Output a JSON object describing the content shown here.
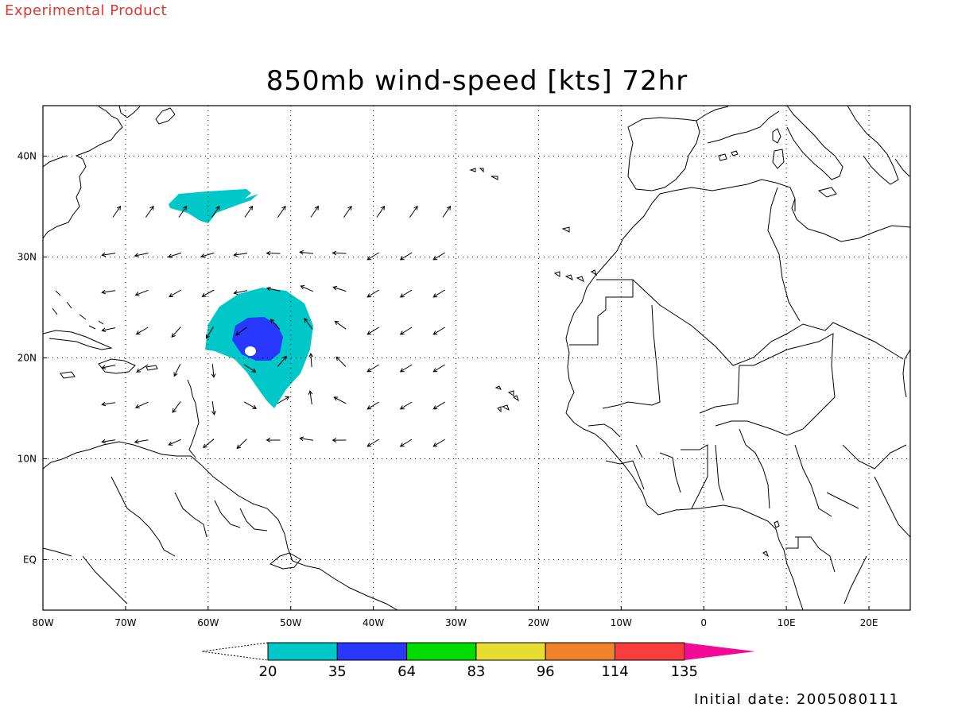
{
  "header": {
    "banner": "Experimental Product"
  },
  "map": {
    "title": "850mb wind-speed [kts] 72hr",
    "lon_range": [
      -80,
      25
    ],
    "lat_range": [
      -5,
      45
    ],
    "lon_ticks": [
      {
        "value": -80,
        "label": "80W"
      },
      {
        "value": -70,
        "label": "70W"
      },
      {
        "value": -60,
        "label": "60W"
      },
      {
        "value": -50,
        "label": "50W"
      },
      {
        "value": -40,
        "label": "40W"
      },
      {
        "value": -30,
        "label": "30W"
      },
      {
        "value": -20,
        "label": "20W"
      },
      {
        "value": -10,
        "label": "10W"
      },
      {
        "value": 0,
        "label": "0"
      },
      {
        "value": 10,
        "label": "10E"
      },
      {
        "value": 20,
        "label": "20E"
      }
    ],
    "lat_ticks": [
      {
        "value": 0,
        "label": "EQ"
      },
      {
        "value": 10,
        "label": "10N"
      },
      {
        "value": 20,
        "label": "20N"
      },
      {
        "value": 30,
        "label": "30N"
      },
      {
        "value": 40,
        "label": "40N"
      }
    ],
    "grid": "dotted",
    "storm_center": {
      "lon": -54,
      "lat": 21.5
    },
    "colors": {
      "coast": "#000000",
      "grid": "#000000"
    }
  },
  "colorbar": {
    "labels": [
      "20",
      "35",
      "64",
      "83",
      "96",
      "114",
      "135"
    ],
    "colors": [
      "#00c8c8",
      "#2838ff",
      "#00dc00",
      "#e6dc32",
      "#f0822a",
      "#fa3c3c",
      "#f00a96"
    ]
  },
  "footer": {
    "initial_date": "Initial date: 2005080111"
  }
}
